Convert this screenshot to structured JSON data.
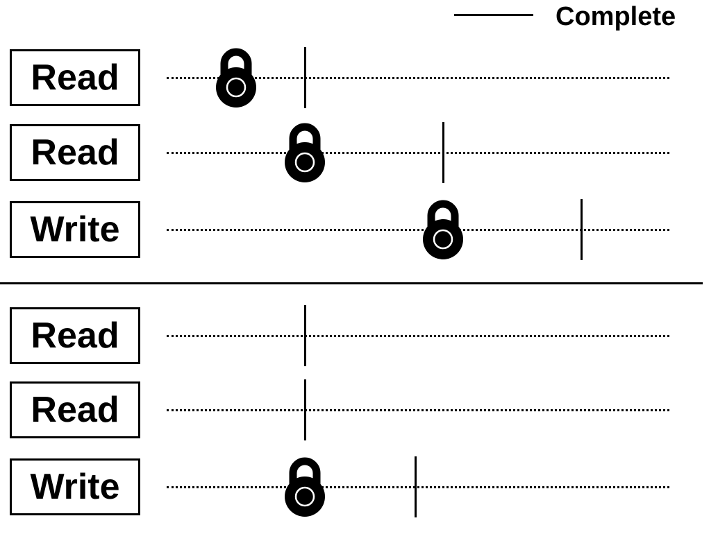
{
  "legend": {
    "label": "Complete"
  },
  "icons": {
    "lock": "padlock-icon",
    "complete": "vertical-tick"
  },
  "colors": {
    "ink": "#000000",
    "background": "#ffffff"
  },
  "groups": [
    {
      "rows": [
        {
          "label": "Read",
          "lock": 1,
          "complete": 2
        },
        {
          "label": "Read",
          "lock": 2,
          "complete": 4
        },
        {
          "label": "Write",
          "lock": 4,
          "complete": 6
        }
      ]
    },
    {
      "rows": [
        {
          "label": "Read",
          "lock": null,
          "complete": 2
        },
        {
          "label": "Read",
          "lock": null,
          "complete": 2
        },
        {
          "label": "Write",
          "lock": 2,
          "complete": 3.6
        }
      ]
    }
  ]
}
